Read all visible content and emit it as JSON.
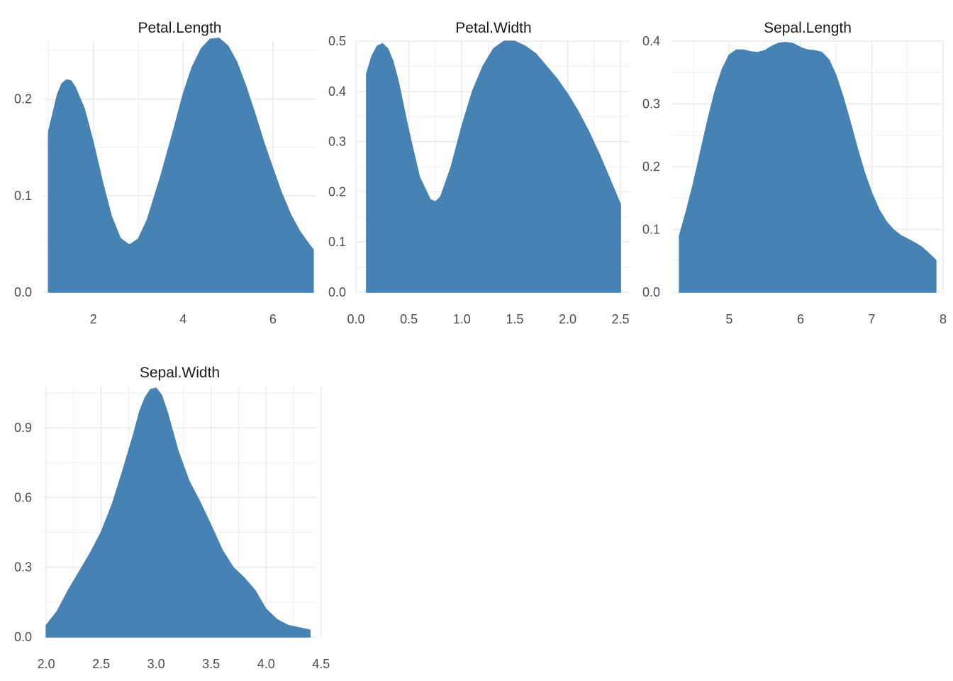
{
  "fill_color": "#4682B4",
  "grid": true,
  "chart_data": [
    {
      "type": "area",
      "title": "Petal.Length",
      "xlim": [
        0.9,
        6.95
      ],
      "ylim": [
        0,
        0.26
      ],
      "x_ticks": [
        2,
        4,
        6
      ],
      "y_ticks": [
        0.0,
        0.1,
        0.2
      ],
      "x_tick_labels": [
        "2",
        "4",
        "6"
      ],
      "y_tick_labels": [
        "0.0",
        "0.1",
        "0.2"
      ],
      "x": [
        1.0,
        1.2,
        1.3,
        1.4,
        1.5,
        1.6,
        1.8,
        2.0,
        2.2,
        2.4,
        2.6,
        2.8,
        3.0,
        3.2,
        3.5,
        3.8,
        4.0,
        4.2,
        4.4,
        4.6,
        4.8,
        5.0,
        5.2,
        5.4,
        5.6,
        5.8,
        6.0,
        6.2,
        6.4,
        6.6,
        6.8,
        6.9
      ],
      "y": [
        0.166,
        0.205,
        0.216,
        0.22,
        0.219,
        0.212,
        0.19,
        0.155,
        0.115,
        0.079,
        0.056,
        0.049,
        0.055,
        0.075,
        0.12,
        0.17,
        0.205,
        0.233,
        0.252,
        0.262,
        0.263,
        0.255,
        0.238,
        0.213,
        0.185,
        0.155,
        0.128,
        0.102,
        0.08,
        0.063,
        0.05,
        0.044
      ]
    },
    {
      "type": "area",
      "title": "Petal.Width",
      "xlim": [
        0.02,
        2.58
      ],
      "ylim": [
        0,
        0.5
      ],
      "x_ticks": [
        0.0,
        0.5,
        1.0,
        1.5,
        2.0,
        2.5
      ],
      "y_ticks": [
        0.0,
        0.1,
        0.2,
        0.3,
        0.4,
        0.5
      ],
      "x_tick_labels": [
        "0.0",
        "0.5",
        "1.0",
        "1.5",
        "2.0",
        "2.5"
      ],
      "y_tick_labels": [
        "0.0",
        "0.1",
        "0.2",
        "0.3",
        "0.4",
        "0.5"
      ],
      "x": [
        0.1,
        0.15,
        0.2,
        0.25,
        0.3,
        0.35,
        0.4,
        0.5,
        0.6,
        0.7,
        0.75,
        0.8,
        0.9,
        1.0,
        1.1,
        1.2,
        1.3,
        1.4,
        1.5,
        1.6,
        1.7,
        1.8,
        1.9,
        2.0,
        2.1,
        2.2,
        2.3,
        2.4,
        2.5
      ],
      "y": [
        0.435,
        0.47,
        0.49,
        0.495,
        0.485,
        0.46,
        0.42,
        0.32,
        0.23,
        0.185,
        0.18,
        0.19,
        0.25,
        0.33,
        0.4,
        0.45,
        0.485,
        0.5,
        0.5,
        0.49,
        0.475,
        0.45,
        0.425,
        0.395,
        0.36,
        0.32,
        0.275,
        0.225,
        0.175
      ]
    },
    {
      "type": "area",
      "title": "Sepal.Length",
      "xlim": [
        4.2,
        8.0
      ],
      "ylim": [
        0,
        0.4
      ],
      "x_ticks": [
        5,
        6,
        7,
        8
      ],
      "y_ticks": [
        0.0,
        0.1,
        0.2,
        0.3,
        0.4
      ],
      "x_tick_labels": [
        "5",
        "6",
        "7",
        "8"
      ],
      "y_tick_labels": [
        "0.0",
        "0.1",
        "0.2",
        "0.3",
        "0.4"
      ],
      "x": [
        4.3,
        4.4,
        4.5,
        4.6,
        4.7,
        4.8,
        4.9,
        5.0,
        5.1,
        5.2,
        5.3,
        5.4,
        5.5,
        5.6,
        5.7,
        5.8,
        5.9,
        6.0,
        6.1,
        6.2,
        6.3,
        6.4,
        6.5,
        6.6,
        6.7,
        6.8,
        6.9,
        7.0,
        7.1,
        7.2,
        7.3,
        7.4,
        7.5,
        7.6,
        7.7,
        7.8,
        7.9
      ],
      "y": [
        0.09,
        0.13,
        0.175,
        0.225,
        0.275,
        0.32,
        0.355,
        0.378,
        0.386,
        0.386,
        0.383,
        0.382,
        0.385,
        0.392,
        0.397,
        0.398,
        0.396,
        0.39,
        0.386,
        0.385,
        0.382,
        0.37,
        0.345,
        0.31,
        0.27,
        0.228,
        0.19,
        0.158,
        0.132,
        0.113,
        0.1,
        0.091,
        0.085,
        0.079,
        0.072,
        0.062,
        0.051
      ]
    },
    {
      "type": "area",
      "title": "Sepal.Width",
      "xlim": [
        1.98,
        4.45
      ],
      "ylim": [
        0,
        1.08
      ],
      "x_ticks": [
        2.0,
        2.5,
        3.0,
        3.5,
        4.0,
        4.5
      ],
      "y_ticks": [
        0.0,
        0.3,
        0.6,
        0.9
      ],
      "x_tick_labels": [
        "2.0",
        "2.5",
        "3.0",
        "3.5",
        "4.0",
        "4.5"
      ],
      "y_tick_labels": [
        "0.0",
        "0.3",
        "0.6",
        "0.9"
      ],
      "x": [
        2.0,
        2.1,
        2.2,
        2.3,
        2.4,
        2.5,
        2.6,
        2.7,
        2.8,
        2.85,
        2.9,
        2.95,
        3.0,
        3.05,
        3.1,
        3.2,
        3.3,
        3.4,
        3.5,
        3.6,
        3.7,
        3.8,
        3.9,
        4.0,
        4.1,
        4.2,
        4.3,
        4.4
      ],
      "y": [
        0.05,
        0.11,
        0.2,
        0.28,
        0.36,
        0.45,
        0.57,
        0.72,
        0.88,
        0.97,
        1.03,
        1.065,
        1.07,
        1.04,
        0.97,
        0.8,
        0.67,
        0.58,
        0.48,
        0.375,
        0.3,
        0.255,
        0.2,
        0.12,
        0.075,
        0.05,
        0.04,
        0.03
      ]
    }
  ]
}
